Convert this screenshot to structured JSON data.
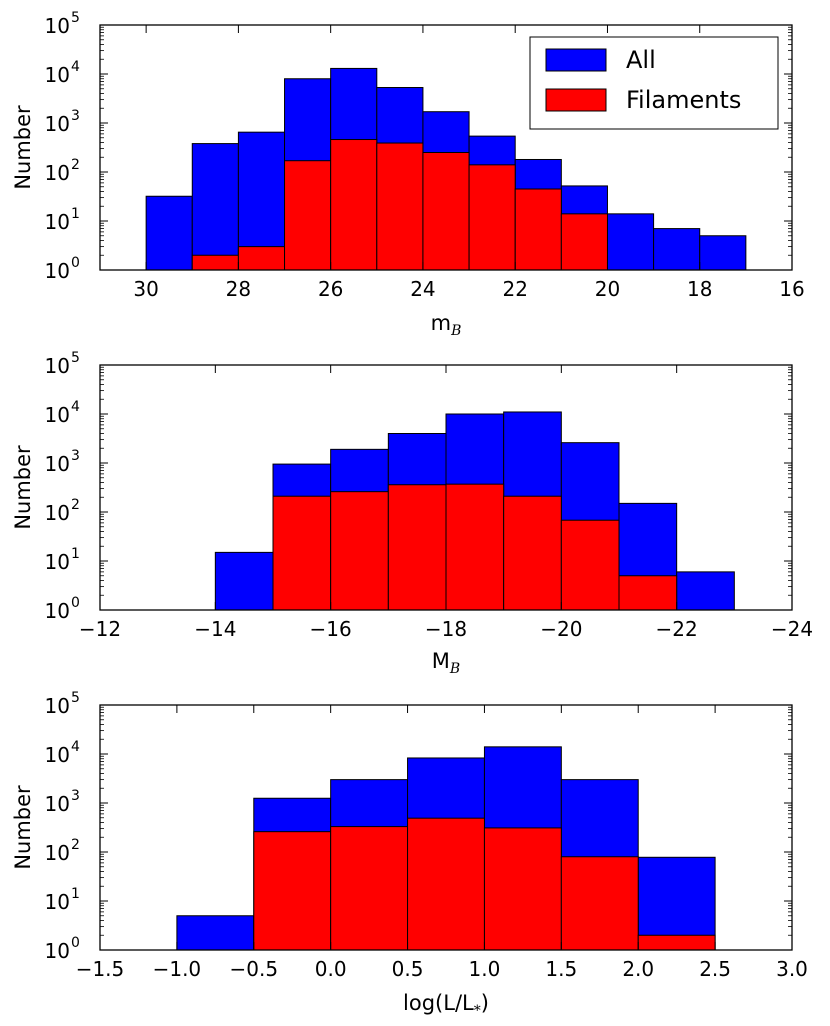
{
  "chart_data": [
    {
      "type": "bar",
      "title": "",
      "xlabel": "m",
      "xlabel_sub": "B",
      "ylabel": "Number",
      "xlim": [
        31,
        16
      ],
      "ylim_log10": [
        0,
        5
      ],
      "xticks": [
        "30",
        "28",
        "26",
        "24",
        "22",
        "20",
        "18",
        "16"
      ],
      "xtick_values": [
        30,
        28,
        26,
        24,
        22,
        20,
        18,
        16
      ],
      "yticks": [
        {
          "base": "10",
          "exp": "0"
        },
        {
          "base": "10",
          "exp": "1"
        },
        {
          "base": "10",
          "exp": "2"
        },
        {
          "base": "10",
          "exp": "3"
        },
        {
          "base": "10",
          "exp": "4"
        },
        {
          "base": "10",
          "exp": "5"
        }
      ],
      "legend": {
        "position": "top-right",
        "entries": [
          "All",
          "Filaments"
        ]
      },
      "series": [
        {
          "name": "All",
          "color": "#0000ff",
          "bins": [
            [
              30,
              29
            ],
            [
              29,
              28
            ],
            [
              28,
              27
            ],
            [
              27,
              26
            ],
            [
              26,
              25
            ],
            [
              25,
              24
            ],
            [
              24,
              23
            ],
            [
              23,
              22
            ],
            [
              22,
              21
            ],
            [
              21,
              20
            ],
            [
              20,
              19
            ],
            [
              19,
              18
            ],
            [
              18,
              17
            ]
          ],
          "values": [
            32,
            380,
            650,
            8000,
            13000,
            5300,
            1700,
            540,
            180,
            52,
            14,
            7,
            5
          ]
        },
        {
          "name": "Filaments",
          "color": "#ff0000",
          "bins": [
            [
              29,
              28
            ],
            [
              28,
              27
            ],
            [
              27,
              26
            ],
            [
              26,
              25
            ],
            [
              25,
              24
            ],
            [
              24,
              23
            ],
            [
              23,
              22
            ],
            [
              22,
              21
            ],
            [
              21,
              20
            ]
          ],
          "values": [
            2,
            3,
            170,
            460,
            390,
            250,
            140,
            45,
            14
          ]
        }
      ]
    },
    {
      "type": "bar",
      "title": "",
      "xlabel": "M",
      "xlabel_sub": "B",
      "ylabel": "Number",
      "xlim": [
        -12,
        -24
      ],
      "ylim_log10": [
        0,
        5
      ],
      "xticks": [
        "−12",
        "−14",
        "−16",
        "−18",
        "−20",
        "−22",
        "−24"
      ],
      "xtick_values": [
        -12,
        -14,
        -16,
        -18,
        -20,
        -22,
        -24
      ],
      "yticks": [
        {
          "base": "10",
          "exp": "0"
        },
        {
          "base": "10",
          "exp": "1"
        },
        {
          "base": "10",
          "exp": "2"
        },
        {
          "base": "10",
          "exp": "3"
        },
        {
          "base": "10",
          "exp": "4"
        },
        {
          "base": "10",
          "exp": "5"
        }
      ],
      "series": [
        {
          "name": "All",
          "color": "#0000ff",
          "bins": [
            [
              -14,
              -15
            ],
            [
              -15,
              -16
            ],
            [
              -16,
              -17
            ],
            [
              -17,
              -18
            ],
            [
              -18,
              -19
            ],
            [
              -19,
              -20
            ],
            [
              -20,
              -21
            ],
            [
              -21,
              -22
            ],
            [
              -22,
              -23
            ]
          ],
          "values": [
            15,
            950,
            1900,
            4000,
            10000,
            11000,
            2600,
            150,
            6
          ]
        },
        {
          "name": "Filaments",
          "color": "#ff0000",
          "bins": [
            [
              -15,
              -16
            ],
            [
              -16,
              -17
            ],
            [
              -17,
              -18
            ],
            [
              -18,
              -19
            ],
            [
              -19,
              -20
            ],
            [
              -20,
              -21
            ],
            [
              -21,
              -22
            ]
          ],
          "values": [
            210,
            260,
            360,
            370,
            210,
            68,
            5
          ]
        }
      ]
    },
    {
      "type": "bar",
      "title": "",
      "xlabel": "log(L/L",
      "xlabel_sub": "*",
      "xlabel_suffix": ")",
      "ylabel": "Number",
      "xlim": [
        -1.5,
        3.0
      ],
      "ylim_log10": [
        0,
        5
      ],
      "xticks": [
        "−1.5",
        "−1.0",
        "−0.5",
        "0.0",
        "0.5",
        "1.0",
        "1.5",
        "2.0",
        "2.5",
        "3.0"
      ],
      "xtick_values": [
        -1.5,
        -1.0,
        -0.5,
        0.0,
        0.5,
        1.0,
        1.5,
        2.0,
        2.5,
        3.0
      ],
      "yticks": [
        {
          "base": "10",
          "exp": "0"
        },
        {
          "base": "10",
          "exp": "1"
        },
        {
          "base": "10",
          "exp": "2"
        },
        {
          "base": "10",
          "exp": "3"
        },
        {
          "base": "10",
          "exp": "4"
        },
        {
          "base": "10",
          "exp": "5"
        }
      ],
      "series": [
        {
          "name": "All",
          "color": "#0000ff",
          "bins": [
            [
              -1.0,
              -0.5
            ],
            [
              -0.5,
              0.0
            ],
            [
              0.0,
              0.5
            ],
            [
              0.5,
              1.0
            ],
            [
              1.0,
              1.5
            ],
            [
              1.5,
              2.0
            ],
            [
              2.0,
              2.5
            ]
          ],
          "values": [
            5,
            1250,
            3000,
            8300,
            14000,
            3000,
            78
          ]
        },
        {
          "name": "Filaments",
          "color": "#ff0000",
          "bins": [
            [
              -0.5,
              0.0
            ],
            [
              0.0,
              0.5
            ],
            [
              0.5,
              1.0
            ],
            [
              1.0,
              1.5
            ],
            [
              1.5,
              2.0
            ],
            [
              2.0,
              2.5
            ]
          ],
          "values": [
            260,
            330,
            490,
            310,
            80,
            2
          ]
        }
      ]
    }
  ]
}
